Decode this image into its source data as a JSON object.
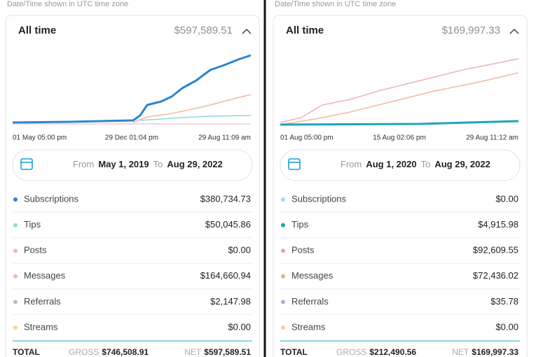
{
  "panels": [
    {
      "note": "Date/Time shown in UTC time zone",
      "title": "All time",
      "total": "$597,589.51",
      "x_labels": [
        "01 May 05:00 pm",
        "29 Dec 01:04 pm",
        "29 Aug 11:09 am"
      ],
      "from_label": "From",
      "from_date": "May 1, 2019",
      "to_label": "To",
      "to_date": "Aug 29, 2022",
      "rows": [
        {
          "name": "Subscriptions",
          "value": "$380,734.73",
          "color": "#2b86cf"
        },
        {
          "name": "Tips",
          "value": "$50,045.86",
          "color": "#8fd8e0"
        },
        {
          "name": "Posts",
          "value": "$0.00",
          "color": "#f3b4c4"
        },
        {
          "name": "Messages",
          "value": "$164,660.94",
          "color": "#f4b9a0"
        },
        {
          "name": "Referrals",
          "value": "$2,147.98",
          "color": "#c3b6e2"
        },
        {
          "name": "Streams",
          "value": "$0.00",
          "color": "#f7d39a"
        }
      ],
      "footer": {
        "label": "TOTAL",
        "gross_label": "GROSS",
        "gross": "$746,508.91",
        "net_label": "NET",
        "net": "$597,589.51"
      }
    },
    {
      "note": "Date/Time shown in UTC time zone",
      "title": "All time",
      "total": "$169,997.33",
      "x_labels": [
        "01 Aug 05:00 pm",
        "15 Aug 02:06 pm",
        "29 Aug 11:12 am"
      ],
      "from_label": "From",
      "from_date": "Aug 1, 2020",
      "to_label": "To",
      "to_date": "Aug 29, 2022",
      "rows": [
        {
          "name": "Subscriptions",
          "value": "$0.00",
          "color": "#a7d7ea"
        },
        {
          "name": "Tips",
          "value": "$4,915.98",
          "color": "#1aa6b8"
        },
        {
          "name": "Posts",
          "value": "$92,609.55",
          "color": "#ee9ab2"
        },
        {
          "name": "Messages",
          "value": "$72,436.02",
          "color": "#f1a888"
        },
        {
          "name": "Referrals",
          "value": "$35.78",
          "color": "#b8a8dc"
        },
        {
          "name": "Streams",
          "value": "$0.00",
          "color": "#f7d39a"
        }
      ],
      "footer": {
        "label": "TOTAL",
        "gross_label": "GROSS",
        "gross": "$212,490.56",
        "net_label": "NET",
        "net": "$169,997.33"
      }
    }
  ]
}
